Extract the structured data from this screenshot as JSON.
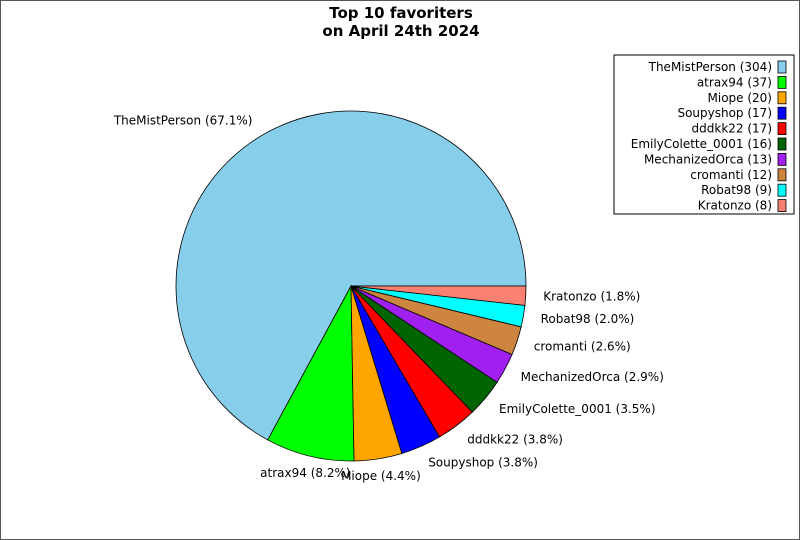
{
  "chart_data": {
    "type": "pie",
    "title": "Top 10 favoriters",
    "subtitle": "on April 24th 2024",
    "legend_position": "top-right",
    "start_angle_deg": 0,
    "direction": "counterclockwise",
    "slices": [
      {
        "name": "TheMistPerson",
        "value": 304,
        "percent": "67.1%",
        "color": "#87CEEB",
        "legend": "TheMistPerson (304)",
        "label": "TheMistPerson (67.1%)"
      },
      {
        "name": "atrax94",
        "value": 37,
        "percent": "8.2%",
        "color": "#00FF00",
        "legend": "atrax94 (37)",
        "label": "atrax94 (8.2%)"
      },
      {
        "name": "Miope",
        "value": 20,
        "percent": "4.4%",
        "color": "#FFA500",
        "legend": "Miope (20)",
        "label": "Miope (4.4%)"
      },
      {
        "name": "Soupyshop",
        "value": 17,
        "percent": "3.8%",
        "color": "#0000FF",
        "legend": "Soupyshop (17)",
        "label": "Soupyshop (3.8%)"
      },
      {
        "name": "dddkk22",
        "value": 17,
        "percent": "3.8%",
        "color": "#FF0000",
        "legend": "dddkk22 (17)",
        "label": "dddkk22 (3.8%)"
      },
      {
        "name": "EmilyColette_0001",
        "value": 16,
        "percent": "3.5%",
        "color": "#006400",
        "legend": "EmilyColette_0001 (16)",
        "label": "EmilyColette_0001 (3.5%)"
      },
      {
        "name": "MechanizedOrca",
        "value": 13,
        "percent": "2.9%",
        "color": "#A020F0",
        "legend": "MechanizedOrca (13)",
        "label": "MechanizedOrca (2.9%)"
      },
      {
        "name": "cromanti",
        "value": 12,
        "percent": "2.6%",
        "color": "#CD853F",
        "legend": "cromanti (12)",
        "label": "cromanti (2.6%)"
      },
      {
        "name": "Robat98",
        "value": 9,
        "percent": "2.0%",
        "color": "#00FFFF",
        "legend": "Robat98 (9)",
        "label": "Robat98 (2.0%)"
      },
      {
        "name": "Kratonzo",
        "value": 8,
        "percent": "1.8%",
        "color": "#FA8072",
        "legend": "Kratonzo (8)",
        "label": "Kratonzo (1.8%)"
      }
    ]
  }
}
